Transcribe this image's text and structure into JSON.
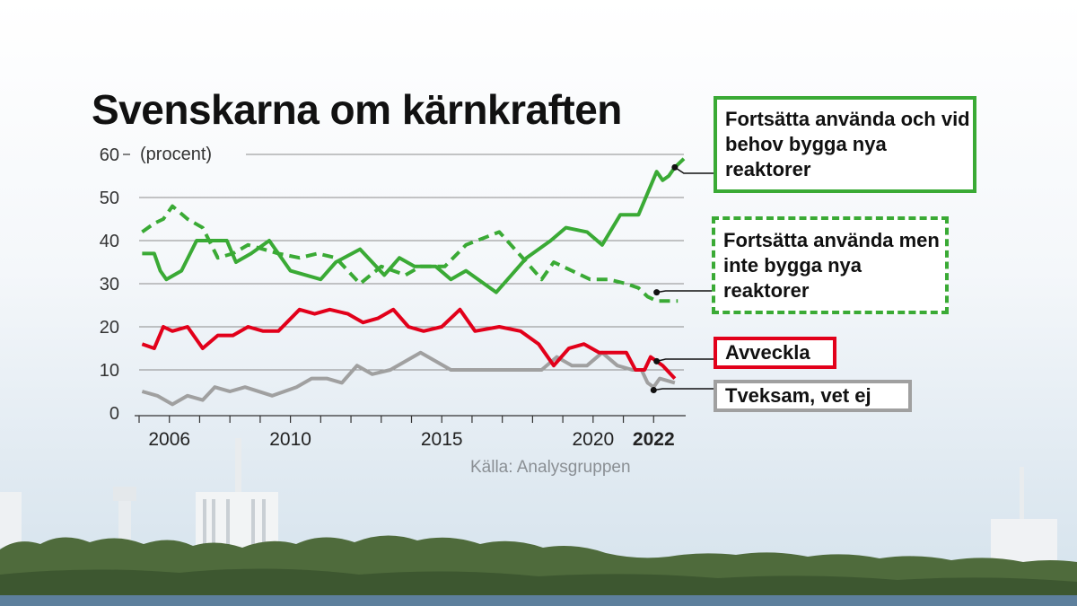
{
  "title": "Svenskarna om kärnkraften",
  "source": "Källa: Analysgruppen",
  "colors": {
    "dark_green": "#3aaa35",
    "light_green": "#3aaa35",
    "red": "#e2001a",
    "gray": "#a0a0a0"
  },
  "legend": {
    "dark_green": "Fortsätta använda och vid behov bygga nya reaktorer",
    "light_green": "Fortsätta använda men inte bygga nya reaktorer",
    "red": "Avveckla",
    "gray": "Tveksam, vet ej"
  },
  "chart_data": {
    "type": "line",
    "title": "Svenskarna om kärnkraften",
    "ylabel": "(procent)",
    "xlabel": "",
    "ylim": [
      0,
      60
    ],
    "yticks": [
      0,
      10,
      20,
      30,
      40,
      50,
      60
    ],
    "xlim": [
      2005.3,
      2022.6
    ],
    "xtick_labels": [
      {
        "x": 2006,
        "label": "2006",
        "bold": false
      },
      {
        "x": 2010,
        "label": "2010",
        "bold": false
      },
      {
        "x": 2015,
        "label": "2015",
        "bold": false
      },
      {
        "x": 2020,
        "label": "2020",
        "bold": false
      },
      {
        "x": 2022,
        "label": "2022",
        "bold": true
      }
    ],
    "minor_ticks": [
      2006,
      2007,
      2008,
      2009,
      2010,
      2011,
      2012,
      2013,
      2014,
      2015,
      2016,
      2017,
      2018,
      2019,
      2020,
      2021,
      2022
    ],
    "grid": true,
    "legend_position": "right",
    "series": [
      {
        "name": "Fortsätta använda och vid behov bygga nya reaktorer",
        "color": "#3aaa35",
        "dashed": false,
        "points": [
          [
            2005.6,
            37
          ],
          [
            2006.0,
            37
          ],
          [
            2006.2,
            33
          ],
          [
            2006.4,
            31
          ],
          [
            2006.9,
            33
          ],
          [
            2007.4,
            40
          ],
          [
            2008.0,
            40
          ],
          [
            2008.4,
            40
          ],
          [
            2008.7,
            35
          ],
          [
            2009.2,
            37
          ],
          [
            2009.8,
            40
          ],
          [
            2010.5,
            33
          ],
          [
            2011.5,
            31
          ],
          [
            2012.0,
            35
          ],
          [
            2012.8,
            38
          ],
          [
            2013.6,
            32
          ],
          [
            2014.1,
            36
          ],
          [
            2014.6,
            34
          ],
          [
            2015.3,
            34
          ],
          [
            2015.8,
            31
          ],
          [
            2016.3,
            33
          ],
          [
            2017.3,
            28
          ],
          [
            2017.8,
            32
          ],
          [
            2018.3,
            36
          ],
          [
            2019.1,
            40
          ],
          [
            2019.6,
            43
          ],
          [
            2020.3,
            42
          ],
          [
            2020.8,
            39
          ],
          [
            2021.4,
            46
          ],
          [
            2022.0,
            46
          ],
          [
            2022.3,
            51
          ],
          [
            2022.6,
            56
          ],
          [
            2022.8,
            54
          ],
          [
            2023.0,
            55
          ],
          [
            2023.2,
            57
          ],
          [
            2023.5,
            59
          ]
        ]
      },
      {
        "name": "Fortsätta använda men inte bygga nya reaktorer",
        "color": "#3aaa35",
        "dashed": true,
        "points": [
          [
            2005.6,
            42
          ],
          [
            2006.0,
            44
          ],
          [
            2006.3,
            45
          ],
          [
            2006.6,
            48
          ],
          [
            2007.1,
            45
          ],
          [
            2007.6,
            43
          ],
          [
            2008.1,
            36
          ],
          [
            2008.6,
            37
          ],
          [
            2009.1,
            39
          ],
          [
            2009.6,
            38
          ],
          [
            2010.1,
            37
          ],
          [
            2010.8,
            36
          ],
          [
            2011.4,
            37
          ],
          [
            2012.0,
            36
          ],
          [
            2012.8,
            30
          ],
          [
            2013.5,
            34
          ],
          [
            2014.3,
            32
          ],
          [
            2014.8,
            34
          ],
          [
            2015.6,
            34
          ],
          [
            2016.3,
            39
          ],
          [
            2017.4,
            42
          ],
          [
            2018.3,
            35
          ],
          [
            2018.8,
            31
          ],
          [
            2019.2,
            35
          ],
          [
            2019.8,
            33
          ],
          [
            2020.4,
            31
          ],
          [
            2021.0,
            31
          ],
          [
            2021.6,
            30
          ],
          [
            2022.0,
            29
          ],
          [
            2022.3,
            27
          ],
          [
            2022.6,
            26
          ],
          [
            2023.3,
            26
          ]
        ]
      },
      {
        "name": "Avveckla",
        "color": "#e2001a",
        "dashed": false,
        "points": [
          [
            2005.6,
            16
          ],
          [
            2006.0,
            15
          ],
          [
            2006.3,
            20
          ],
          [
            2006.6,
            19
          ],
          [
            2007.1,
            20
          ],
          [
            2007.6,
            15
          ],
          [
            2008.1,
            18
          ],
          [
            2008.6,
            18
          ],
          [
            2009.1,
            20
          ],
          [
            2009.6,
            19
          ],
          [
            2010.1,
            19
          ],
          [
            2010.8,
            24
          ],
          [
            2011.3,
            23
          ],
          [
            2011.8,
            24
          ],
          [
            2012.4,
            23
          ],
          [
            2012.9,
            21
          ],
          [
            2013.4,
            22
          ],
          [
            2013.9,
            24
          ],
          [
            2014.4,
            20
          ],
          [
            2014.9,
            19
          ],
          [
            2015.5,
            20
          ],
          [
            2016.1,
            24
          ],
          [
            2016.6,
            19
          ],
          [
            2017.4,
            20
          ],
          [
            2018.1,
            19
          ],
          [
            2018.7,
            16
          ],
          [
            2019.2,
            11
          ],
          [
            2019.7,
            15
          ],
          [
            2020.2,
            16
          ],
          [
            2020.7,
            14
          ],
          [
            2021.2,
            14
          ],
          [
            2021.6,
            14
          ],
          [
            2021.9,
            10
          ],
          [
            2022.2,
            10
          ],
          [
            2022.4,
            13
          ],
          [
            2022.8,
            11
          ],
          [
            2023.2,
            8
          ]
        ]
      },
      {
        "name": "Tveksam, vet ej",
        "color": "#a0a0a0",
        "dashed": false,
        "points": [
          [
            2005.6,
            5
          ],
          [
            2006.1,
            4
          ],
          [
            2006.6,
            2
          ],
          [
            2007.1,
            4
          ],
          [
            2007.6,
            3
          ],
          [
            2008.0,
            6
          ],
          [
            2008.5,
            5
          ],
          [
            2009.0,
            6
          ],
          [
            2009.9,
            4
          ],
          [
            2010.7,
            6
          ],
          [
            2011.2,
            8
          ],
          [
            2011.7,
            8
          ],
          [
            2012.2,
            7
          ],
          [
            2012.7,
            11
          ],
          [
            2013.2,
            9
          ],
          [
            2013.8,
            10
          ],
          [
            2014.8,
            14
          ],
          [
            2015.3,
            12
          ],
          [
            2015.8,
            10
          ],
          [
            2016.8,
            10
          ],
          [
            2017.8,
            10
          ],
          [
            2018.8,
            10
          ],
          [
            2019.3,
            13
          ],
          [
            2019.8,
            11
          ],
          [
            2020.3,
            11
          ],
          [
            2020.8,
            14
          ],
          [
            2021.3,
            11
          ],
          [
            2021.8,
            10
          ],
          [
            2022.1,
            10
          ],
          [
            2022.3,
            7
          ],
          [
            2022.5,
            6
          ],
          [
            2022.7,
            8
          ],
          [
            2023.2,
            7
          ]
        ]
      }
    ]
  }
}
